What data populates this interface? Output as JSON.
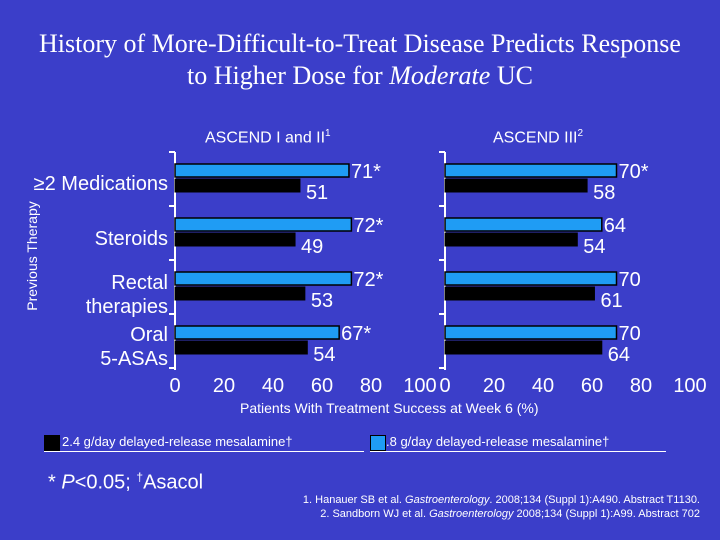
{
  "title": {
    "line1": "History of More-Difficult-to-Treat Disease Predicts Response",
    "line2_prefix": "to Higher Dose for ",
    "line2_italic": "Moderate",
    "line2_suffix": " UC"
  },
  "y_axis_title": "Previous Therapy",
  "x_axis_title": "Patients With Treatment Success at Week 6 (%)",
  "categories": [
    {
      "lines": [
        "≥2 Medications"
      ]
    },
    {
      "lines": [
        "Steroids"
      ]
    },
    {
      "lines": [
        "Rectal",
        "therapies"
      ]
    },
    {
      "lines": [
        "Oral",
        "5-ASAs"
      ]
    }
  ],
  "legend": {
    "dark": "2.4 g/day delayed-release mesalamine†",
    "light": ".8 g/day delayed-release mesalamine†"
  },
  "footnote": {
    "text1": "* ",
    "p": "P",
    "text2": "<0.05; ",
    "dagger": "†",
    "text3": "Asacol"
  },
  "references": {
    "ref1_a": "1. Hanauer SB et al. ",
    "ref1_journal": "Gastroenterology",
    "ref1_b": ". 2008;134 (Suppl 1):A490. Abstract T1130.",
    "ref2_a": "2. Sandborn WJ et al. ",
    "ref2_journal": "Gastroenterology",
    "ref2_b": " 2008;134 (Suppl 1):A99. Abstract 702"
  },
  "colors": {
    "background": "#3b3ec9",
    "dark_bar": "#000000",
    "light_bar": "#1f9cf4",
    "text": "#ffffff"
  },
  "chart_data": [
    {
      "type": "bar",
      "orientation": "horizontal",
      "title": "ASCEND I and II",
      "title_sup": "1",
      "categories": [
        "≥2 Medications",
        "Steroids",
        "Rectal therapies",
        "Oral 5-ASAs"
      ],
      "series": [
        {
          "name": "2.4 g/day delayed-release mesalamine†",
          "color": "#000000",
          "values": [
            51,
            49,
            53,
            54
          ],
          "labels": [
            "51",
            "49",
            "53",
            "54"
          ]
        },
        {
          "name": ".8 g/day delayed-release mesalamine†",
          "color": "#1f9cf4",
          "values": [
            71,
            72,
            72,
            67
          ],
          "labels": [
            "71*",
            "72*",
            "72*",
            "67*"
          ]
        }
      ],
      "xlim": [
        0,
        100
      ],
      "xticks": [
        "0",
        "20",
        "40",
        "60",
        "80",
        "100"
      ],
      "xlabel": "Patients With Treatment Success at Week 6 (%)",
      "ylabel": "Previous Therapy"
    },
    {
      "type": "bar",
      "orientation": "horizontal",
      "title": "ASCEND III",
      "title_sup": "2",
      "categories": [
        "≥2 Medications",
        "Steroids",
        "Rectal therapies",
        "Oral 5-ASAs"
      ],
      "series": [
        {
          "name": "2.4 g/day delayed-release mesalamine†",
          "color": "#000000",
          "values": [
            58,
            54,
            61,
            64
          ],
          "labels": [
            "58",
            "54",
            "61",
            "64"
          ]
        },
        {
          "name": ".8 g/day delayed-release mesalamine†",
          "color": "#1f9cf4",
          "values": [
            70,
            64,
            70,
            70
          ],
          "labels": [
            "70*",
            "64",
            "70",
            "70"
          ]
        }
      ],
      "xlim": [
        0,
        100
      ],
      "xticks": [
        "0",
        "20",
        "40",
        "60",
        "80",
        "100"
      ],
      "xlabel": "Patients With Treatment Success at Week 6 (%)"
    }
  ]
}
